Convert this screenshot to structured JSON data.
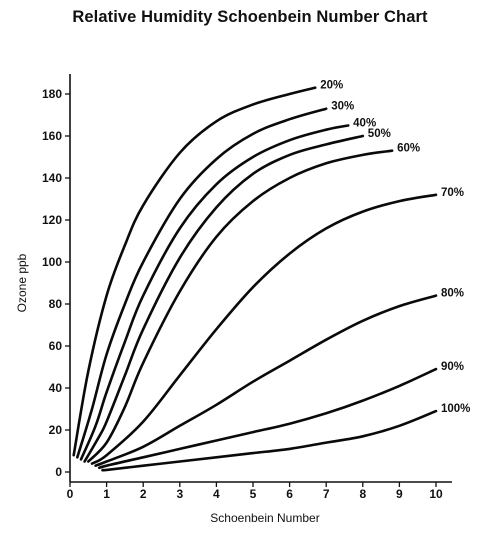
{
  "chart_data": {
    "type": "line",
    "title": "Relative Humidity Schoenbein Number Chart",
    "xlabel": "Schoenbein Number",
    "ylabel": "Ozone ppb",
    "xlim": [
      0,
      10.6
    ],
    "ylim": [
      0,
      185
    ],
    "x_ticks": [
      0,
      1,
      2,
      3,
      4,
      5,
      6,
      7,
      8,
      9,
      10
    ],
    "y_ticks": [
      0,
      20,
      40,
      60,
      80,
      100,
      120,
      140,
      160,
      180
    ],
    "grid": false,
    "legend": "inline-labels-at-curve-ends",
    "series": [
      {
        "name": "20%",
        "x": [
          0.1,
          0.5,
          1.0,
          1.5,
          2.0,
          3.0,
          4.0,
          5.0,
          6.0,
          6.7
        ],
        "y": [
          8,
          48,
          84,
          108,
          127,
          152,
          167,
          175,
          180,
          183
        ]
      },
      {
        "name": "30%",
        "x": [
          0.2,
          0.6,
          1.0,
          1.5,
          2.0,
          3.0,
          4.0,
          5.0,
          6.0,
          7.0
        ],
        "y": [
          7,
          30,
          56,
          80,
          100,
          130,
          149,
          161,
          168,
          173
        ]
      },
      {
        "name": "40%",
        "x": [
          0.3,
          0.7,
          1.0,
          1.5,
          2.0,
          3.0,
          4.0,
          5.0,
          6.0,
          7.0,
          7.6
        ],
        "y": [
          6,
          22,
          38,
          62,
          84,
          116,
          137,
          150,
          158,
          163,
          165
        ]
      },
      {
        "name": "50%",
        "x": [
          0.4,
          0.8,
          1.0,
          1.5,
          2.0,
          3.0,
          4.0,
          5.0,
          6.0,
          7.0,
          8.0
        ],
        "y": [
          5,
          17,
          24,
          46,
          68,
          102,
          126,
          142,
          151,
          156,
          160
        ]
      },
      {
        "name": "60%",
        "x": [
          0.5,
          1.0,
          1.5,
          2.0,
          3.0,
          4.0,
          5.0,
          6.0,
          7.0,
          8.0,
          8.8
        ],
        "y": [
          5,
          14,
          31,
          52,
          86,
          112,
          129,
          140,
          147,
          151,
          153
        ]
      },
      {
        "name": "70%",
        "x": [
          0.6,
          1.0,
          2.0,
          3.0,
          4.0,
          5.0,
          6.0,
          7.0,
          8.0,
          9.0,
          10.0
        ],
        "y": [
          4,
          8,
          24,
          46,
          68,
          88,
          104,
          116,
          124,
          129,
          132
        ]
      },
      {
        "name": "80%",
        "x": [
          0.7,
          1.0,
          2.0,
          3.0,
          4.0,
          5.0,
          6.0,
          7.0,
          8.0,
          9.0,
          10.0
        ],
        "y": [
          3,
          5,
          12,
          22,
          32,
          43,
          53,
          63,
          72,
          79,
          84
        ]
      },
      {
        "name": "90%",
        "x": [
          0.8,
          1.0,
          2.0,
          3.0,
          4.0,
          5.0,
          6.0,
          7.0,
          8.0,
          9.0,
          10.0
        ],
        "y": [
          2,
          3,
          7,
          11,
          15,
          19,
          23,
          28,
          34,
          41,
          49
        ]
      },
      {
        "name": "100%",
        "x": [
          0.9,
          1.0,
          2.0,
          3.0,
          4.0,
          5.0,
          6.0,
          7.0,
          8.0,
          9.0,
          10.0
        ],
        "y": [
          1,
          1,
          3,
          5,
          7,
          9,
          11,
          14,
          17,
          22,
          29
        ]
      }
    ],
    "line_color": "#0a0a0a"
  }
}
